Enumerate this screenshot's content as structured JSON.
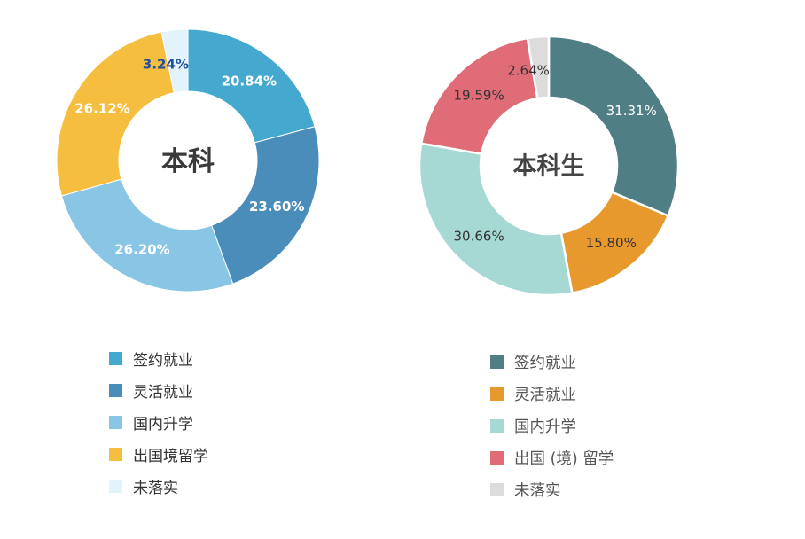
{
  "chart_data": [
    {
      "type": "pie",
      "center_label": "本科",
      "categories": [
        "签约就业",
        "灵活就业",
        "国内升学",
        "出国境留学",
        "未落实"
      ],
      "values": [
        20.84,
        23.6,
        26.2,
        26.12,
        3.24
      ],
      "value_labels": [
        "20.84%",
        "23.60%",
        "26.20%",
        "26.12%",
        "3.24%"
      ],
      "colors": [
        "#45A8CF",
        "#4A8DBA",
        "#89C6E6",
        "#F5BE3F",
        "#E3F3FB"
      ],
      "label_colors": [
        "#ffffff",
        "#ffffff",
        "#ffffff",
        "#ffffff",
        "#1F4F9E"
      ],
      "legend_position": "bottom"
    },
    {
      "type": "pie",
      "center_label": "本科生",
      "categories": [
        "签约就业",
        "灵活就业",
        "国内升学",
        "出国 (境) 留学",
        "未落实"
      ],
      "values": [
        31.31,
        15.8,
        30.66,
        19.59,
        2.64
      ],
      "value_labels": [
        "31.31%",
        "15.80%",
        "30.66%",
        "19.59%",
        "2.64%"
      ],
      "colors": [
        "#4F7E84",
        "#E7992E",
        "#A6D8D4",
        "#E06C78",
        "#DCDCDC"
      ],
      "label_colors": [
        "#ffffff",
        "#333333",
        "#333333",
        "#333333",
        "#333333"
      ],
      "legend_position": "bottom"
    }
  ]
}
